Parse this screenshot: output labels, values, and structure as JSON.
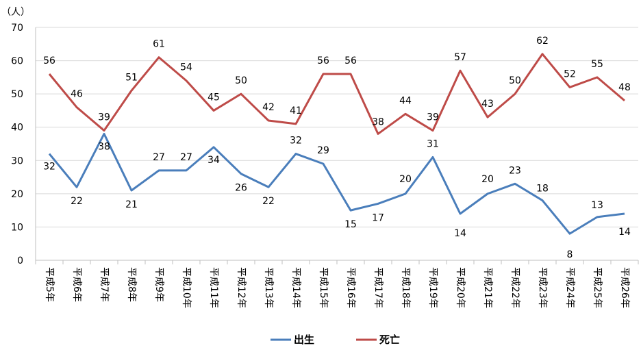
{
  "chart_data": {
    "type": "line",
    "unit_label": "（人）",
    "categories": [
      "平成5年",
      "平成6年",
      "平成7年",
      "平成8年",
      "平成9年",
      "平成10年",
      "平成11年",
      "平成12年",
      "平成13年",
      "平成14年",
      "平成15年",
      "平成16年",
      "平成17年",
      "平成18年",
      "平成19年",
      "平成20年",
      "平成21年",
      "平成22年",
      "平成23年",
      "平成24年",
      "平成25年",
      "平成26年"
    ],
    "series": [
      {
        "name": "出生",
        "color": "#4a7ebb",
        "values": [
          32,
          22,
          38,
          21,
          27,
          27,
          34,
          26,
          22,
          32,
          29,
          15,
          17,
          20,
          31,
          14,
          20,
          23,
          18,
          8,
          13,
          14
        ]
      },
      {
        "name": "死亡",
        "color": "#be4b48",
        "values": [
          56,
          46,
          39,
          51,
          61,
          54,
          45,
          50,
          42,
          41,
          56,
          56,
          38,
          44,
          39,
          57,
          43,
          50,
          62,
          52,
          55,
          48
        ]
      }
    ],
    "ylim": [
      0,
      70
    ],
    "yticks": [
      0,
      10,
      20,
      30,
      40,
      50,
      60,
      70
    ],
    "grid": true,
    "legend_position": "bottom"
  }
}
